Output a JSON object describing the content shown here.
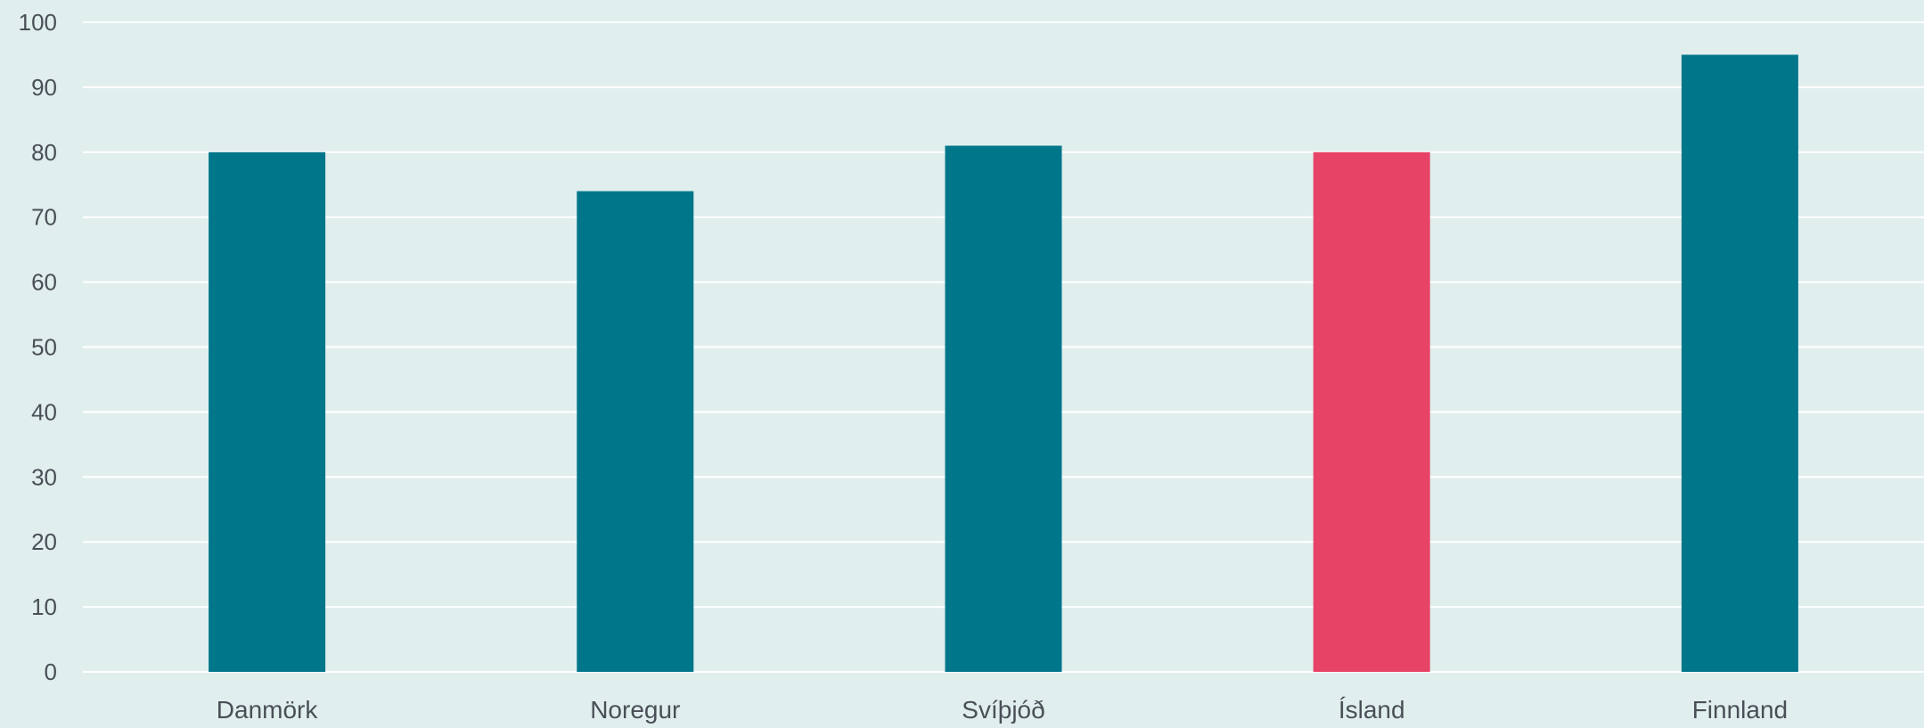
{
  "colors": {
    "background": "#e0efee",
    "gridline": "#ffffff",
    "bar_default": "#00768a",
    "bar_highlight": "#e74367",
    "text": "#4a4f57"
  },
  "chart_data": {
    "type": "bar",
    "title": "",
    "xlabel": "",
    "ylabel": "",
    "categories": [
      "Danmörk",
      "Noregur",
      "Svíþjóð",
      "Ísland",
      "Finnland"
    ],
    "values": [
      80,
      74,
      81,
      80,
      95
    ],
    "highlight_category": "Ísland",
    "ylim": [
      0,
      100
    ],
    "yticks": [
      "0",
      "10",
      "20",
      "30",
      "40",
      "50",
      "60",
      "70",
      "80",
      "90",
      "100"
    ],
    "grid": true,
    "legend": "none"
  }
}
